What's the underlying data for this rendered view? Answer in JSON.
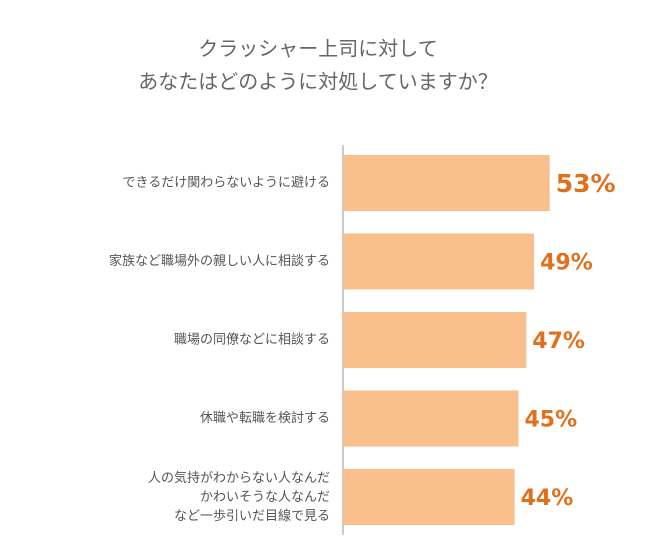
{
  "chart_data": {
    "type": "bar",
    "orientation": "horizontal",
    "title": [
      "クラッシャー上司に対して",
      "あなたはどのように対処していますか？"
    ],
    "categories": [
      "できるだけ関わらないように避ける",
      "家族など職場外の親しい人に相談する",
      "職場の同僚などに相談する",
      "休職や転職を検討する",
      "人の気持がわからない人なんだ\nかわいそうな人なんだ\nなど一歩引いだ目線で見る"
    ],
    "values": [
      53,
      49,
      47,
      45,
      44
    ],
    "value_labels": [
      "53%",
      "49%",
      "47%",
      "45%",
      "44%"
    ],
    "color": "#f9c08e",
    "label_color": "#e0701c"
  }
}
